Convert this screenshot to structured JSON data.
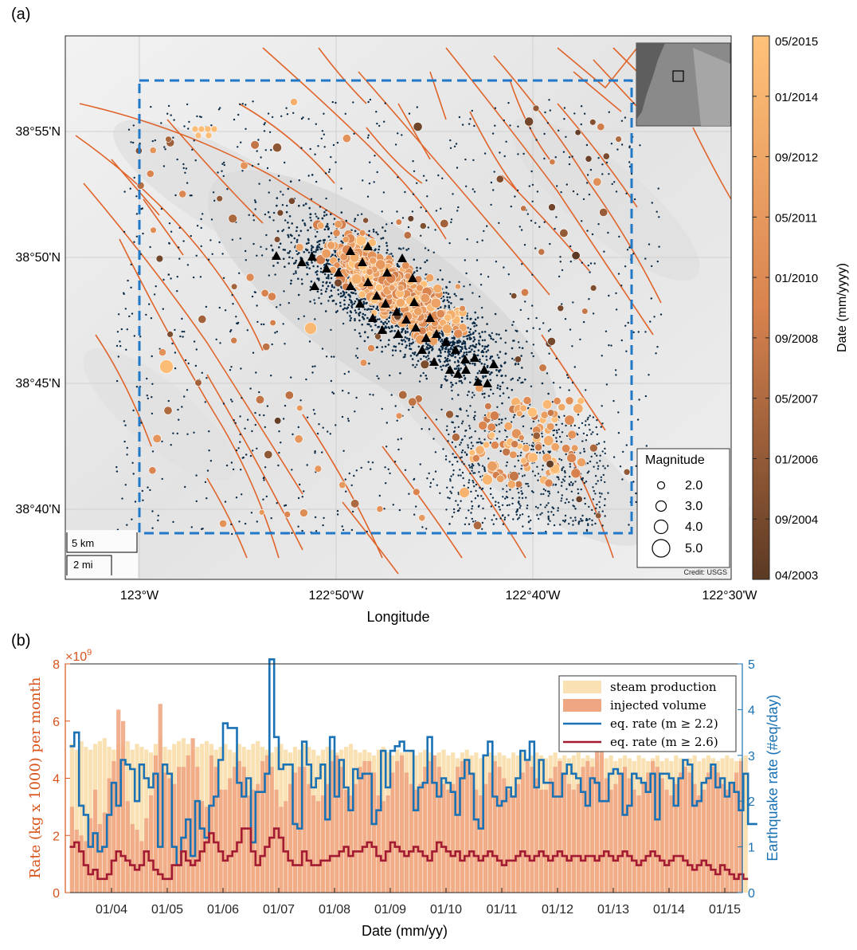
{
  "panel_a": {
    "label": "(a)",
    "xlabel": "Longitude",
    "x_ticks": [
      "123°W",
      "122°50'W",
      "122°40'W",
      "122°30'W"
    ],
    "y_ticks": [
      "38°55'N",
      "38°50'N",
      "38°45'N",
      "38°40'N"
    ],
    "colorbar": {
      "label": "Date (mm/yyyy)",
      "ticks": [
        "05/2015",
        "01/2014",
        "09/2012",
        "05/2011",
        "01/2010",
        "09/2008",
        "05/2007",
        "01/2006",
        "09/2004",
        "04/2003"
      ],
      "color_light": "#ffc27a",
      "color_dark": "#5b3923"
    },
    "legend": {
      "title": "Magnitude",
      "entries": [
        "2.0",
        "3.0",
        "4.0",
        "5.0"
      ]
    },
    "scalebar": {
      "km": "5 km",
      "mi": "2 mi"
    },
    "credit": "Credit: USGS",
    "colors": {
      "fault": "#e0642a",
      "box": "#1f78c8",
      "dots": "#0b2a45",
      "station": "#000000"
    }
  },
  "panel_b": {
    "label": "(b)",
    "multiplier": "×10",
    "multiplier_exp": "9",
    "ylabel_left": "Rate (kg x 1000) per month",
    "ylabel_right": "Earthquake rate (#eq/day)",
    "xlabel": "Date (mm/yy)",
    "legend": [
      "steam production",
      "injected volume",
      "eq. rate (m ≥ 2.2)",
      "eq. rate (m ≥ 2.6)"
    ],
    "colors": {
      "steam": "#f9e1b3",
      "injected": "#efa783",
      "rate22": "#1a72b5",
      "rate26": "#a31a33",
      "left_axis": "#d95319",
      "right_axis": "#1a72b5"
    }
  },
  "chart_data": [
    {
      "type": "scatter",
      "title": "",
      "xlabel": "Longitude",
      "ylabel": "",
      "x_range": [
        "123°03'W",
        "122°30'W"
      ],
      "y_range": [
        "38°37'N",
        "38°58'N"
      ],
      "colorbar_range": [
        "04/2003",
        "05/2015"
      ],
      "legend": [
        "Magnitude 2.0",
        "Magnitude 3.0",
        "Magnitude 4.0",
        "Magnitude 5.0"
      ],
      "points": [
        {
          "lon": -122.94,
          "lat": 38.761,
          "mag": 4.6,
          "date": "2014-06"
        },
        {
          "lon": -122.73,
          "lat": 38.78,
          "mag": 4.0,
          "date": "2014-01"
        },
        {
          "lon": -122.6,
          "lat": 38.7,
          "mag": 3.8,
          "date": "2013-09"
        },
        {
          "lon": -122.62,
          "lat": 38.69,
          "mag": 3.7,
          "date": "2013-11"
        },
        {
          "lon": -122.47,
          "lat": 38.69,
          "mag": 3.5,
          "date": "2014-08"
        },
        {
          "lon": -122.76,
          "lat": 38.85,
          "mag": 3.5,
          "date": "2013-06"
        },
        {
          "lon": -122.71,
          "lat": 38.86,
          "mag": 3.3,
          "date": "2007-10"
        },
        {
          "lon": -122.58,
          "lat": 38.72,
          "mag": 3.6,
          "date": "2012-03"
        },
        {
          "lon": -122.82,
          "lat": 38.7,
          "mag": 3.0,
          "date": "2005-04"
        },
        {
          "lon": -122.95,
          "lat": 38.91,
          "mag": 3.0,
          "date": "2006-07"
        },
        {
          "lon": -122.92,
          "lat": 38.92,
          "mag": 2.9,
          "date": "2011-08"
        }
      ]
    },
    {
      "type": "bar",
      "title": "",
      "xlabel": "Date (mm/yy)",
      "ylabel": "Rate (kg x 1000) per month",
      "y2label": "Earthquake rate (#eq/day)",
      "x_ticks": [
        "01/04",
        "01/05",
        "01/06",
        "01/07",
        "01/08",
        "01/09",
        "01/10",
        "01/11",
        "01/12",
        "01/13",
        "01/14",
        "01/15"
      ],
      "ylim": [
        0,
        8
      ],
      "y_ticks": [
        0,
        2,
        4,
        6,
        8
      ],
      "y_scale": "×10^9",
      "y2lim": [
        0,
        5
      ],
      "y2_ticks": [
        0,
        1,
        2,
        3,
        4,
        5
      ],
      "x_start": "2003-04",
      "bar_width_months": 1,
      "series": [
        {
          "name": "steam production",
          "kind": "bar",
          "values": [
            5.2,
            5.0,
            5.3,
            5.1,
            5.0,
            5.2,
            5.3,
            5.4,
            5.1,
            5.0,
            5.2,
            5.1,
            5.3,
            5.0,
            5.2,
            5.1,
            5.0,
            4.9,
            5.2,
            5.4,
            5.1,
            5.0,
            5.2,
            5.3,
            5.4,
            5.2,
            5.0,
            5.1,
            5.2,
            5.3,
            5.2,
            5.0,
            5.1,
            5.2,
            5.0,
            4.9,
            5.2,
            5.1,
            5.0,
            5.2,
            5.3,
            5.1,
            5.0,
            4.9,
            5.1,
            5.2,
            5.0,
            4.9,
            5.1,
            5.0,
            5.2,
            5.1,
            5.0,
            4.8,
            5.0,
            5.1,
            5.0,
            4.9,
            5.0,
            5.1,
            5.2,
            5.0,
            4.9,
            5.0,
            4.9,
            4.8,
            5.0,
            5.1,
            4.9,
            4.8,
            5.0,
            4.9,
            4.9,
            5.0,
            4.8,
            4.9,
            5.0,
            4.9,
            4.8,
            4.9,
            5.0,
            4.8,
            4.9,
            4.7,
            4.9,
            5.0,
            4.8,
            4.9,
            4.7,
            4.8,
            4.9,
            4.8,
            4.9,
            4.8,
            4.7,
            4.9,
            4.8,
            4.9,
            4.7,
            4.8,
            4.9,
            4.8,
            4.7,
            4.8,
            4.9,
            4.7,
            4.8,
            4.7,
            4.8,
            4.9,
            4.7,
            4.8,
            4.7,
            4.6,
            4.8,
            4.7,
            4.8,
            4.6,
            4.7,
            4.8,
            4.7,
            4.6,
            4.8,
            4.7,
            4.6,
            4.7,
            4.8,
            4.6,
            4.7,
            4.6,
            4.8,
            4.7,
            4.6,
            4.7,
            4.8,
            4.6,
            4.7,
            4.8,
            4.7,
            4.6,
            4.7,
            4.8,
            4.7,
            4.6,
            4.7,
            4.8
          ]
        },
        {
          "name": "injected volume",
          "kind": "bar",
          "values": [
            3.0,
            2.2,
            2.0,
            1.8,
            2.6,
            3.6,
            2.4,
            2.8,
            4.0,
            4.6,
            6.4,
            6.0,
            3.2,
            2.4,
            2.2,
            1.8,
            2.6,
            3.4,
            4.8,
            6.6,
            4.2,
            4.0,
            3.8,
            4.4,
            4.4,
            4.8,
            5.4,
            4.4,
            3.2,
            3.0,
            4.8,
            4.4,
            3.6,
            3.6,
            4.0,
            4.4,
            4.6,
            4.4,
            3.4,
            3.6,
            3.8,
            4.6,
            4.8,
            4.4,
            3.6,
            3.0,
            3.2,
            3.8,
            4.2,
            4.4,
            4.4,
            3.8,
            3.4,
            3.2,
            3.4,
            3.8,
            4.6,
            4.8,
            4.4,
            3.6,
            3.4,
            3.8,
            4.4,
            4.6,
            4.6,
            4.2,
            3.4,
            3.2,
            3.4,
            4.2,
            4.6,
            4.8,
            4.2,
            3.8,
            3.6,
            3.8,
            4.4,
            4.6,
            4.8,
            4.4,
            3.8,
            3.6,
            3.8,
            4.4,
            4.6,
            4.6,
            4.2,
            3.6,
            3.4,
            3.8,
            4.2,
            4.6,
            4.4,
            4.0,
            3.6,
            3.4,
            3.8,
            4.2,
            4.6,
            4.4,
            4.0,
            3.6,
            3.6,
            4.0,
            4.4,
            4.6,
            4.2,
            3.8,
            3.6,
            3.8,
            4.4,
            4.6,
            4.4,
            5.8,
            5.8,
            4.0,
            3.6,
            3.8,
            4.2,
            4.4,
            4.0,
            3.6,
            3.4,
            3.8,
            4.2,
            4.6,
            4.4,
            4.0,
            3.6,
            3.4,
            3.8,
            4.2,
            4.4,
            4.2,
            3.8,
            3.4,
            3.6,
            4.2,
            4.4,
            4.2,
            3.8,
            3.6,
            3.8,
            4.2,
            4.6
          ]
        },
        {
          "name": "eq. rate (m ≥ 2.2)",
          "kind": "step",
          "axis": "right",
          "values": [
            3.2,
            3.5,
            1.9,
            1.7,
            1.0,
            1.3,
            0.9,
            1.0,
            1.7,
            2.4,
            1.9,
            2.9,
            2.8,
            2.7,
            2.0,
            2.8,
            2.5,
            2.3,
            2.6,
            1.0,
            2.8,
            2.6,
            1.0,
            0.6,
            1.2,
            1.6,
            0.8,
            2.0,
            1.4,
            1.2,
            1.9,
            2.1,
            2.9,
            3.7,
            3.6,
            3.6,
            2.4,
            2.1,
            2.5,
            1.1,
            2.2,
            2.2,
            2.6,
            5.1,
            3.4,
            2.7,
            2.8,
            2.8,
            1.5,
            1.4,
            3.3,
            2.8,
            2.3,
            2.5,
            2.8,
            1.6,
            3.4,
            2.1,
            2.9,
            2.3,
            1.8,
            2.7,
            2.5,
            2.6,
            2.6,
            1.5,
            1.8,
            3.1,
            2.3,
            3.1,
            3.2,
            3.3,
            3.1,
            3.1,
            1.8,
            2.3,
            2.4,
            3.4,
            2.4,
            2.1,
            2.5,
            2.4,
            2.2,
            1.7,
            2.5,
            2.9,
            2.6,
            1.6,
            1.4,
            3.0,
            3.3,
            2.1,
            1.9,
            2.0,
            2.3,
            2.1,
            2.5,
            3.1,
            2.9,
            3.3,
            2.3,
            2.9,
            2.4,
            2.4,
            2.1,
            2.1,
            2.6,
            2.8,
            2.6,
            2.5,
            2.2,
            1.9,
            2.5,
            2.4,
            2.0,
            2.0,
            2.6,
            2.7,
            2.6,
            1.7,
            1.9,
            2.6,
            2.5,
            2.4,
            2.2,
            2.6,
            1.6,
            2.6,
            2.6,
            2.5,
            1.9,
            2.5,
            2.9,
            2.8,
            1.9,
            2.0,
            2.4,
            2.5,
            2.8,
            2.3,
            2.5,
            2.1,
            2.4,
            2.2,
            1.8,
            2.6,
            1.5,
            1.5
          ]
        },
        {
          "name": "eq. rate (m ≥ 2.6)",
          "kind": "step",
          "axis": "right",
          "values": [
            1.0,
            1.1,
            0.9,
            0.6,
            0.4,
            0.5,
            0.3,
            0.3,
            0.4,
            0.7,
            0.9,
            0.8,
            0.7,
            0.6,
            0.5,
            0.6,
            0.9,
            0.7,
            0.5,
            0.4,
            0.3,
            0.3,
            0.6,
            0.6,
            0.9,
            0.7,
            0.6,
            0.7,
            0.9,
            1.1,
            1.3,
            1.1,
            0.9,
            0.7,
            0.8,
            0.9,
            1.1,
            1.4,
            1.4,
            0.9,
            0.6,
            0.8,
            1.0,
            1.2,
            1.4,
            1.2,
            0.9,
            0.7,
            0.6,
            0.6,
            0.9,
            0.7,
            0.6,
            0.6,
            0.7,
            0.7,
            0.8,
            0.8,
            0.9,
            1.0,
            0.8,
            0.9,
            0.9,
            1.0,
            1.1,
            1.0,
            0.8,
            0.7,
            0.9,
            1.1,
            1.0,
            0.9,
            0.8,
            0.9,
            1.0,
            0.9,
            0.8,
            0.7,
            0.9,
            1.1,
            1.0,
            0.9,
            0.8,
            0.9,
            0.7,
            0.8,
            0.9,
            0.8,
            0.7,
            0.8,
            0.9,
            0.8,
            0.7,
            0.6,
            0.7,
            0.7,
            0.8,
            0.9,
            0.8,
            0.7,
            0.8,
            0.9,
            0.8,
            0.7,
            0.8,
            0.9,
            0.8,
            0.7,
            0.8,
            0.8,
            0.7,
            0.8,
            0.8,
            0.7,
            0.8,
            0.9,
            0.8,
            0.7,
            0.8,
            0.9,
            0.8,
            0.7,
            0.6,
            0.7,
            0.8,
            0.9,
            0.8,
            0.7,
            0.6,
            0.7,
            0.8,
            0.8,
            0.7,
            0.6,
            0.5,
            0.6,
            0.7,
            0.6,
            0.5,
            0.4,
            0.6,
            0.5,
            0.4,
            0.3,
            0.4,
            0.3
          ]
        }
      ]
    }
  ]
}
